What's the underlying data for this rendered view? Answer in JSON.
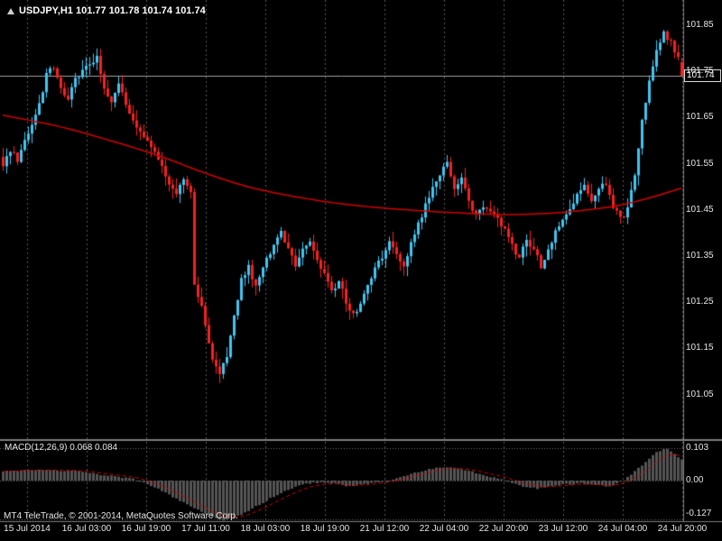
{
  "header": {
    "symbol_ohlc": "USDJPY,H1 101.77 101.78 101.74 101.74"
  },
  "macd": {
    "label": "MACD(12,26,9) 0.068 0.084"
  },
  "footer": {
    "copyright": "MT4 TeleTrade, © 2001-2014, MetaQuotes Software Corp."
  },
  "price_axis": {
    "labels": [
      "101.85",
      "101.75",
      "101.65",
      "101.55",
      "101.45",
      "101.35",
      "101.25",
      "101.15",
      "101.05"
    ],
    "current": "101.74"
  },
  "time_axis": {
    "labels": [
      "15 Jul 2014",
      "16 Jul 03:00",
      "16 Jul 19:00",
      "17 Jul 11:00",
      "18 Jul 03:00",
      "18 Jul 19:00",
      "21 Jul 12:00",
      "22 Jul 04:00",
      "22 Jul 20:00",
      "23 Jul 12:00",
      "24 Jul 04:00",
      "24 Jul 20:00"
    ]
  },
  "macd_axis": {
    "labels": [
      "0.103",
      "0.00",
      "-0.127"
    ]
  },
  "chart_data": [
    {
      "type": "candlestick",
      "title": "USDJPY,H1",
      "symbol": "USDJPY",
      "timeframe": "H1",
      "current_ohlc": {
        "open": 101.77,
        "high": 101.78,
        "low": 101.74,
        "close": 101.74
      },
      "bid_line": 101.74,
      "y_ticks": [
        101.85,
        101.75,
        101.65,
        101.55,
        101.45,
        101.35,
        101.25,
        101.15,
        101.05
      ],
      "x_ticks": [
        "15 Jul 2014",
        "16 Jul 03:00",
        "16 Jul 19:00",
        "17 Jul 11:00",
        "18 Jul 03:00",
        "18 Jul 19:00",
        "21 Jul 12:00",
        "22 Jul 04:00",
        "22 Jul 20:00",
        "23 Jul 12:00",
        "24 Jul 04:00",
        "24 Jul 20:00"
      ],
      "y_range": [
        100.95,
        101.91
      ],
      "bars": 189,
      "bars_per_gridline": 16,
      "close_path": [
        [
          0,
          101.54
        ],
        [
          2,
          101.58
        ],
        [
          4,
          101.56
        ],
        [
          6,
          101.6
        ],
        [
          8,
          101.63
        ],
        [
          10,
          101.68
        ],
        [
          12,
          101.74
        ],
        [
          14,
          101.76
        ],
        [
          16,
          101.71
        ],
        [
          18,
          101.69
        ],
        [
          20,
          101.73
        ],
        [
          22,
          101.75
        ],
        [
          24,
          101.77
        ],
        [
          26,
          101.78
        ],
        [
          28,
          101.71
        ],
        [
          30,
          101.69
        ],
        [
          32,
          101.73
        ],
        [
          34,
          101.68
        ],
        [
          36,
          101.64
        ],
        [
          38,
          101.62
        ],
        [
          40,
          101.6
        ],
        [
          42,
          101.57
        ],
        [
          44,
          101.55
        ],
        [
          46,
          101.5
        ],
        [
          48,
          101.48
        ],
        [
          50,
          101.52
        ],
        [
          52,
          101.49
        ],
        [
          53,
          101.29
        ],
        [
          55,
          101.24
        ],
        [
          56,
          101.2
        ],
        [
          58,
          101.13
        ],
        [
          60,
          101.1
        ],
        [
          62,
          101.13
        ],
        [
          64,
          101.22
        ],
        [
          66,
          101.3
        ],
        [
          68,
          101.33
        ],
        [
          70,
          101.28
        ],
        [
          73,
          101.34
        ],
        [
          75,
          101.37
        ],
        [
          77,
          101.4
        ],
        [
          79,
          101.36
        ],
        [
          81,
          101.33
        ],
        [
          83,
          101.36
        ],
        [
          85,
          101.38
        ],
        [
          87,
          101.34
        ],
        [
          89,
          101.31
        ],
        [
          91,
          101.27
        ],
        [
          93,
          101.3
        ],
        [
          95,
          101.25
        ],
        [
          97,
          101.22
        ],
        [
          99,
          101.25
        ],
        [
          101,
          101.29
        ],
        [
          103,
          101.32
        ],
        [
          105,
          101.35
        ],
        [
          107,
          101.38
        ],
        [
          109,
          101.36
        ],
        [
          111,
          101.33
        ],
        [
          113,
          101.38
        ],
        [
          115,
          101.42
        ],
        [
          117,
          101.46
        ],
        [
          119,
          101.5
        ],
        [
          121,
          101.53
        ],
        [
          123,
          101.55
        ],
        [
          125,
          101.49
        ],
        [
          127,
          101.52
        ],
        [
          129,
          101.47
        ],
        [
          131,
          101.44
        ],
        [
          133,
          101.46
        ],
        [
          135,
          101.45
        ],
        [
          137,
          101.43
        ],
        [
          139,
          101.41
        ],
        [
          141,
          101.37
        ],
        [
          143,
          101.35
        ],
        [
          145,
          101.38
        ],
        [
          147,
          101.36
        ],
        [
          149,
          101.33
        ],
        [
          151,
          101.36
        ],
        [
          153,
          101.4
        ],
        [
          155,
          101.43
        ],
        [
          157,
          101.45
        ],
        [
          159,
          101.48
        ],
        [
          161,
          101.5
        ],
        [
          163,
          101.47
        ],
        [
          165,
          101.5
        ],
        [
          167,
          101.51
        ],
        [
          169,
          101.46
        ],
        [
          171,
          101.43
        ],
        [
          173,
          101.45
        ],
        [
          175,
          101.53
        ],
        [
          177,
          101.64
        ],
        [
          179,
          101.73
        ],
        [
          181,
          101.79
        ],
        [
          183,
          101.83
        ],
        [
          185,
          101.81
        ],
        [
          187,
          101.78
        ],
        [
          188,
          101.74
        ]
      ],
      "moving_average": {
        "color": "#d40000",
        "points": [
          [
            0,
            101.655
          ],
          [
            16,
            101.63
          ],
          [
            32,
            101.595
          ],
          [
            44,
            101.565
          ],
          [
            56,
            101.53
          ],
          [
            68,
            101.5
          ],
          [
            80,
            101.48
          ],
          [
            92,
            101.465
          ],
          [
            104,
            101.455
          ],
          [
            116,
            101.448
          ],
          [
            128,
            101.443
          ],
          [
            140,
            101.44
          ],
          [
            152,
            101.443
          ],
          [
            164,
            101.452
          ],
          [
            172,
            101.462
          ],
          [
            180,
            101.478
          ],
          [
            188,
            101.497
          ]
        ]
      },
      "colors": {
        "up": "#3fc6f2",
        "down": "#f62121",
        "background": "#000000",
        "bid_line": "#a0a0a0"
      }
    },
    {
      "type": "bar",
      "indicator": "MACD(12,26,9)",
      "macd_value": 0.068,
      "signal_value": 0.084,
      "y_ticks": [
        0.103,
        0,
        -0.127
      ],
      "histogram_color": "#555555",
      "signal_color": "#d40000",
      "path": [
        [
          0,
          0.03
        ],
        [
          10,
          0.035
        ],
        [
          20,
          0.03
        ],
        [
          30,
          0.015
        ],
        [
          36,
          0.005
        ],
        [
          40,
          -0.01
        ],
        [
          45,
          -0.04
        ],
        [
          50,
          -0.07
        ],
        [
          55,
          -0.1
        ],
        [
          58,
          -0.115
        ],
        [
          61,
          -0.127
        ],
        [
          64,
          -0.12
        ],
        [
          68,
          -0.095
        ],
        [
          72,
          -0.07
        ],
        [
          76,
          -0.045
        ],
        [
          80,
          -0.025
        ],
        [
          84,
          -0.01
        ],
        [
          88,
          -0.005
        ],
        [
          92,
          -0.01
        ],
        [
          96,
          -0.018
        ],
        [
          100,
          -0.012
        ],
        [
          104,
          -0.005
        ],
        [
          108,
          0.005
        ],
        [
          112,
          0.018
        ],
        [
          116,
          0.03
        ],
        [
          120,
          0.04
        ],
        [
          124,
          0.042
        ],
        [
          128,
          0.035
        ],
        [
          132,
          0.022
        ],
        [
          136,
          0.01
        ],
        [
          140,
          -0.005
        ],
        [
          144,
          -0.018
        ],
        [
          148,
          -0.025
        ],
        [
          152,
          -0.02
        ],
        [
          156,
          -0.012
        ],
        [
          160,
          -0.008
        ],
        [
          164,
          -0.015
        ],
        [
          168,
          -0.018
        ],
        [
          170,
          -0.01
        ],
        [
          172,
          0.0
        ],
        [
          175,
          0.03
        ],
        [
          178,
          0.06
        ],
        [
          181,
          0.09
        ],
        [
          184,
          0.103
        ],
        [
          186,
          0.085
        ],
        [
          188,
          0.068
        ]
      ]
    }
  ]
}
